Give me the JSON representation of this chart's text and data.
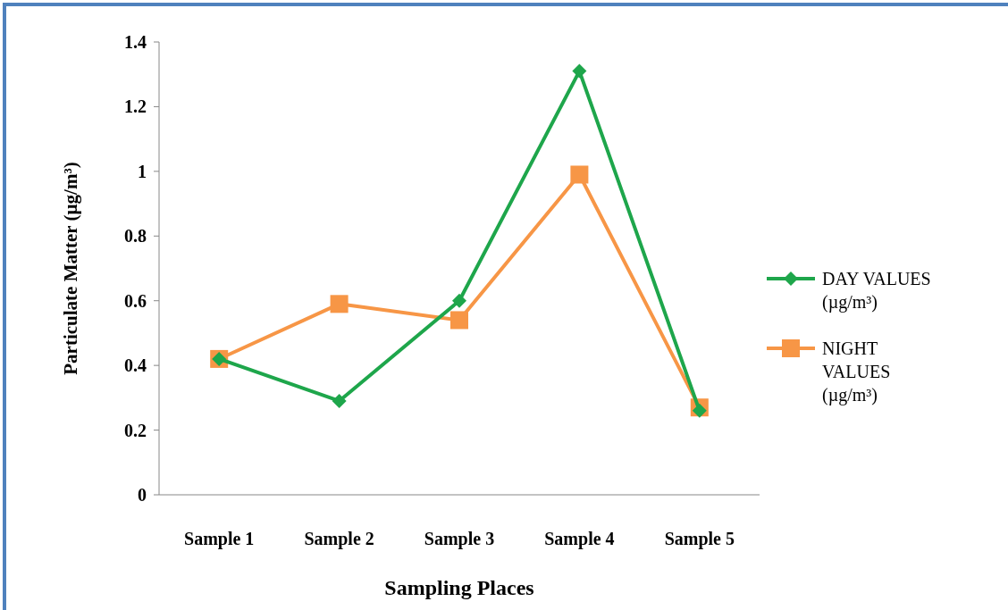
{
  "chart_data": {
    "type": "line",
    "xlabel": "Sampling Places",
    "ylabel": "Particulate Matter (µg/m³)",
    "categories": [
      "Sample 1",
      "Sample 2",
      "Sample 3",
      "Sample 4",
      "Sample 5"
    ],
    "series": [
      {
        "name": "DAY VALUES (µg/m³)",
        "color": "#1ea64b",
        "marker": "diamond",
        "values": [
          0.42,
          0.29,
          0.6,
          1.31,
          0.26
        ]
      },
      {
        "name": "NIGHT VALUES (µg/m³)",
        "color": "#f79646",
        "marker": "square",
        "values": [
          0.42,
          0.59,
          0.54,
          0.99,
          0.27
        ]
      }
    ],
    "ylim": [
      0,
      1.4
    ],
    "yticks": [
      0,
      0.2,
      0.4,
      0.6,
      0.8,
      1,
      1.2,
      1.4
    ],
    "grid": false,
    "legend": "right",
    "line_style": "solid"
  }
}
